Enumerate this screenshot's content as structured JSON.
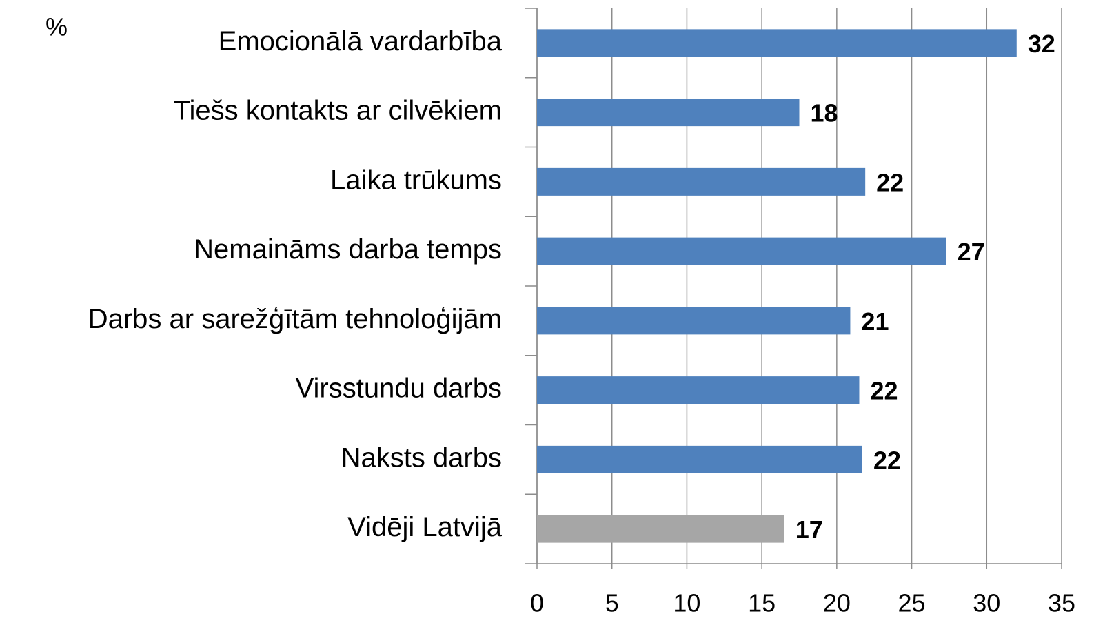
{
  "chart_data": {
    "type": "barh",
    "unit_label": "%",
    "categories": [
      "Emocionālā vardarbība",
      "Tiešs kontakts ar cilvēkiem",
      "Laika trūkums",
      "Nemaināms darba temps",
      "Darbs ar sarežģītām tehnoloģijām",
      "Virsstundu darbs",
      "Naksts darbs",
      "Vidēji Latvijā"
    ],
    "values": [
      32,
      17.5,
      21.9,
      27.3,
      20.9,
      21.5,
      21.7,
      16.5
    ],
    "value_labels": [
      "32",
      "18",
      "22",
      "27",
      "21",
      "22",
      "22",
      "17"
    ],
    "colors": [
      "#4f81bd",
      "#4f81bd",
      "#4f81bd",
      "#4f81bd",
      "#4f81bd",
      "#4f81bd",
      "#4f81bd",
      "#a6a6a6"
    ],
    "xlim": [
      0,
      35
    ],
    "xticks": [
      0,
      5,
      10,
      15,
      20,
      25,
      30,
      35
    ],
    "grid": true
  }
}
